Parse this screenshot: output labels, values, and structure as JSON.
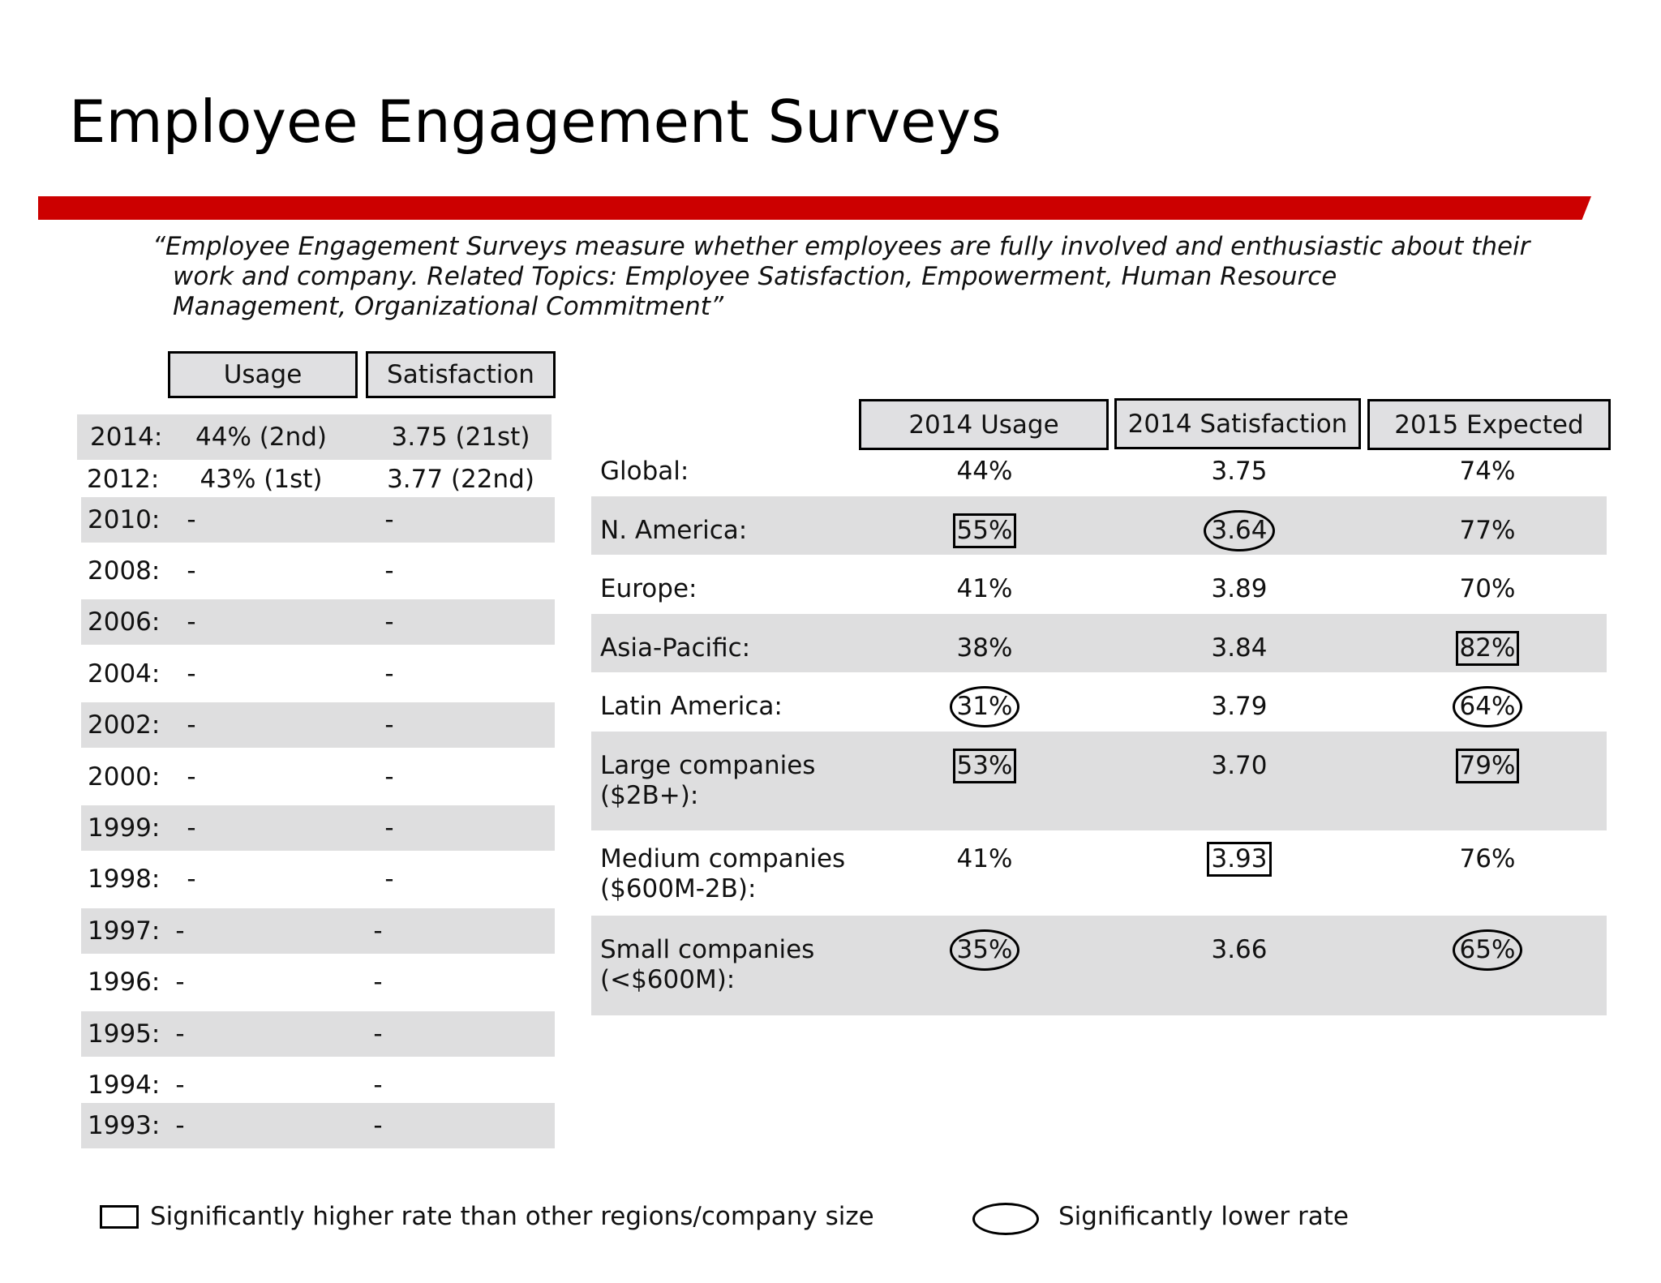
{
  "title": "Employee Engagement Surveys",
  "quote": {
    "line1": "“Employee Engagement Surveys measure whether employees are fully involved and enthusiastic about their",
    "line2": "work and company.  Related Topics: Employee Satisfaction, Empowerment, Human Resource",
    "line3": "Management, Organizational Commitment”"
  },
  "history_table": {
    "headers": {
      "usage": "Usage",
      "satisfaction": "Satisfaction"
    },
    "rows": [
      {
        "year": "2014:",
        "usage": "44% (2nd)",
        "satisfaction": "3.75 (21st)"
      },
      {
        "year": "2012:",
        "usage": "43% (1st)",
        "satisfaction": "3.77 (22nd)"
      },
      {
        "year": "2010:",
        "usage": "-",
        "satisfaction": "-"
      },
      {
        "year": "2008:",
        "usage": "-",
        "satisfaction": "-"
      },
      {
        "year": "2006:",
        "usage": "-",
        "satisfaction": "-"
      },
      {
        "year": "2004:",
        "usage": "-",
        "satisfaction": "-"
      },
      {
        "year": "2002:",
        "usage": "-",
        "satisfaction": "-"
      },
      {
        "year": "2000:",
        "usage": "-",
        "satisfaction": "-"
      },
      {
        "year": "1999:",
        "usage": "-",
        "satisfaction": "-"
      },
      {
        "year": "1998:",
        "usage": "-",
        "satisfaction": "-"
      },
      {
        "year": "1997:",
        "usage": "-",
        "satisfaction": "-"
      },
      {
        "year": "1996:",
        "usage": "-",
        "satisfaction": "-"
      },
      {
        "year": "1995:",
        "usage": "-",
        "satisfaction": "-"
      },
      {
        "year": "1994:",
        "usage": "-",
        "satisfaction": "-"
      },
      {
        "year": "1993:",
        "usage": "-",
        "satisfaction": "-"
      }
    ]
  },
  "region_table": {
    "headers": {
      "usage_2014": "2014 Usage",
      "satisfaction_2014": "2014 Satisfaction",
      "expected_2015": "2015 Expected"
    },
    "rows": [
      {
        "label": "Global:",
        "usage": "44%",
        "usage_mark": "none",
        "satisfaction": "3.75",
        "satisfaction_mark": "none",
        "expected": "74%",
        "expected_mark": "none"
      },
      {
        "label": "N. America:",
        "usage": "55%",
        "usage_mark": "box",
        "satisfaction": "3.64",
        "satisfaction_mark": "oval",
        "expected": "77%",
        "expected_mark": "none"
      },
      {
        "label": "Europe:",
        "usage": "41%",
        "usage_mark": "none",
        "satisfaction": "3.89",
        "satisfaction_mark": "none",
        "expected": "70%",
        "expected_mark": "none"
      },
      {
        "label": "Asia-Pacific:",
        "usage": "38%",
        "usage_mark": "none",
        "satisfaction": "3.84",
        "satisfaction_mark": "none",
        "expected": "82%",
        "expected_mark": "box"
      },
      {
        "label": "Latin America:",
        "usage": "31%",
        "usage_mark": "oval",
        "satisfaction": "3.79",
        "satisfaction_mark": "none",
        "expected": "64%",
        "expected_mark": "oval"
      },
      {
        "label": "Large companies\n($2B+):",
        "usage": "53%",
        "usage_mark": "box",
        "satisfaction": "3.70",
        "satisfaction_mark": "none",
        "expected": "79%",
        "expected_mark": "box"
      },
      {
        "label": "Medium companies\n($600M-2B):",
        "usage": "41%",
        "usage_mark": "none",
        "satisfaction": "3.93",
        "satisfaction_mark": "box",
        "expected": "76%",
        "expected_mark": "none"
      },
      {
        "label": "Small companies\n(<$600M):",
        "usage": "35%",
        "usage_mark": "oval",
        "satisfaction": "3.66",
        "satisfaction_mark": "none",
        "expected": "65%",
        "expected_mark": "oval"
      }
    ]
  },
  "legend": {
    "higher": "Significantly higher rate than other regions/company size",
    "lower": "Significantly lower rate"
  }
}
